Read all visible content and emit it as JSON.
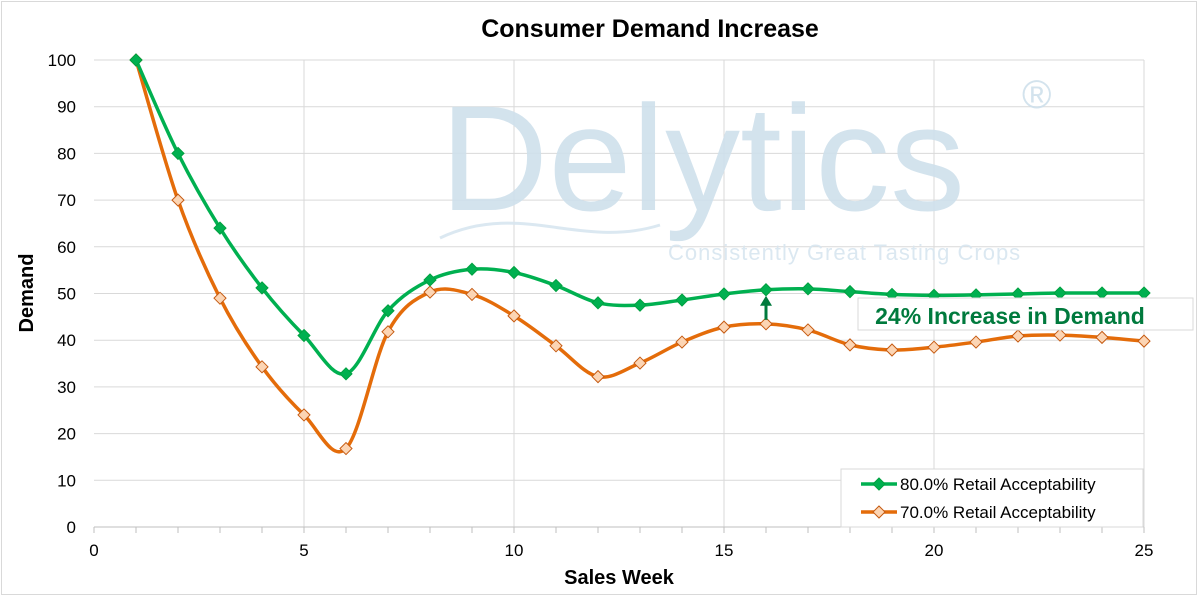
{
  "chart_data": {
    "type": "line",
    "title": "Consumer Demand Increase",
    "xlabel": "Sales Week",
    "ylabel": "Demand",
    "xlim": [
      0,
      25
    ],
    "ylim": [
      0,
      100
    ],
    "xticks": [
      0,
      5,
      10,
      15,
      20,
      25
    ],
    "yticks": [
      0,
      10,
      20,
      30,
      40,
      50,
      60,
      70,
      80,
      90,
      100
    ],
    "grid": true,
    "smooth": true,
    "legend_position": "bottom-right",
    "x": [
      1,
      2,
      3,
      4,
      5,
      6,
      7,
      8,
      9,
      10,
      11,
      12,
      13,
      14,
      15,
      16,
      17,
      18,
      19,
      20,
      21,
      22,
      23,
      24,
      25
    ],
    "series": [
      {
        "name": "80.0% Retail Acceptability",
        "color": "#00b050",
        "marker": "diamond",
        "marker_fill": "#00b050",
        "values": [
          100,
          80,
          64,
          51.2,
          41,
          32.8,
          46.3,
          52.9,
          55.2,
          54.5,
          51.7,
          48,
          47.5,
          48.6,
          49.9,
          50.8,
          51,
          50.4,
          49.8,
          49.6,
          49.7,
          49.9,
          50.1,
          50.1,
          50.1
        ]
      },
      {
        "name": "70.0% Retail Acceptability",
        "color": "#e46c0a",
        "marker": "diamond",
        "marker_fill": "#fcd5b4",
        "values": [
          100,
          70,
          49,
          34.3,
          24,
          16.8,
          41.8,
          50.3,
          49.8,
          45.2,
          38.8,
          32.2,
          35.1,
          39.6,
          42.8,
          43.5,
          42.2,
          39,
          37.9,
          38.5,
          39.6,
          40.9,
          41.1,
          40.6,
          39.8
        ]
      }
    ],
    "annotation": {
      "text": "24% Increase in Demand",
      "color": "#007a3d",
      "arrow_at_x": 16
    }
  },
  "watermark": {
    "brand": "Delytics",
    "mark": "®",
    "tagline": "Consistently Great Tasting Crops",
    "color": "#c9dcea"
  }
}
